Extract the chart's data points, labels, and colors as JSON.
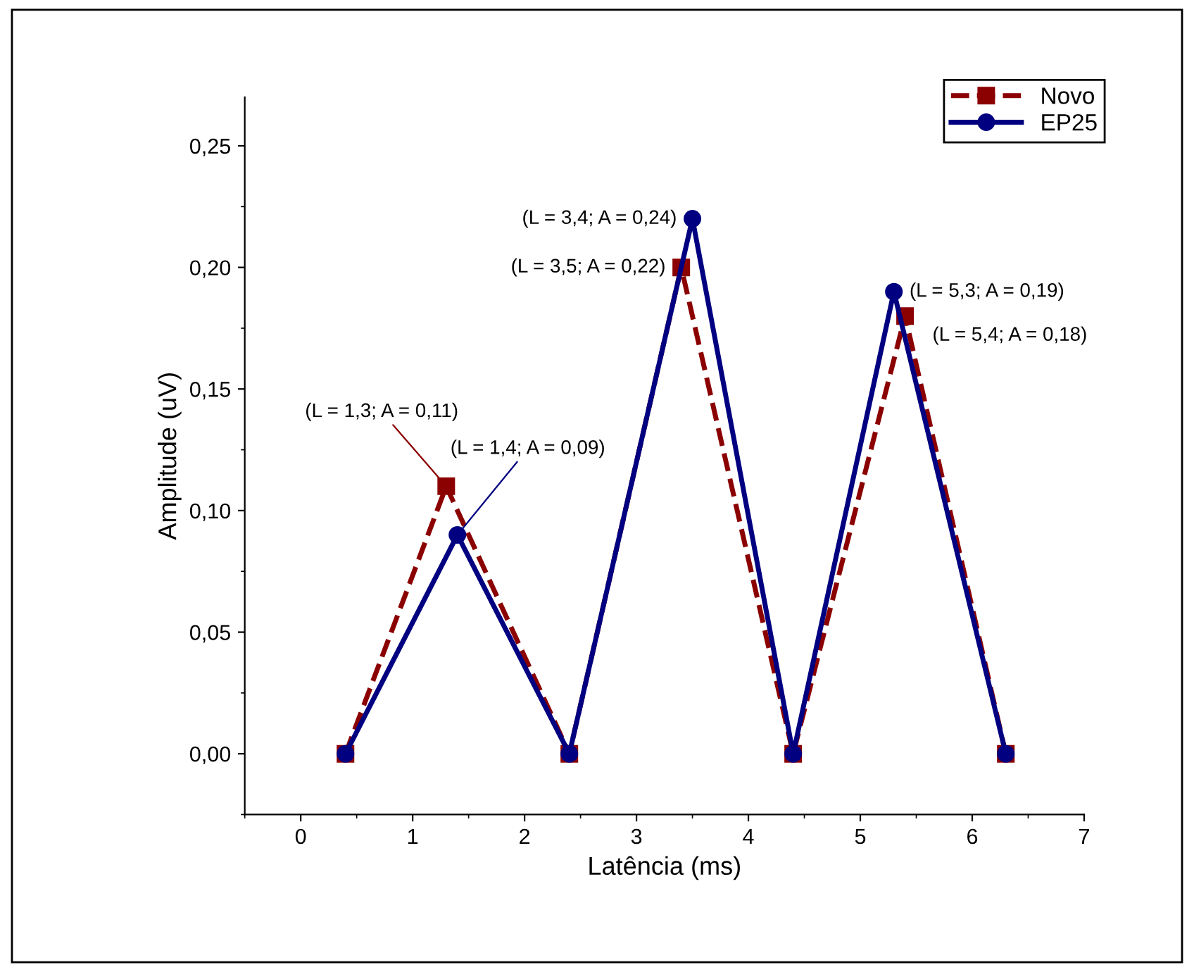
{
  "chart_data": {
    "type": "line",
    "xlabel": "Latência (ms)",
    "ylabel": "Amplitude (uV)",
    "xlim": [
      -0.5,
      7
    ],
    "xticks": [
      0,
      1,
      2,
      3,
      4,
      5,
      6,
      7
    ],
    "ylim": [
      -0.025,
      0.27
    ],
    "yticks": [
      {
        "value": 0,
        "label": "0,00"
      },
      {
        "value": 0.05,
        "label": "0,05"
      },
      {
        "value": 0.1,
        "label": "0,10"
      },
      {
        "value": 0.15,
        "label": "0,15"
      },
      {
        "value": 0.2,
        "label": "0,20"
      },
      {
        "value": 0.25,
        "label": "0,25"
      }
    ],
    "grid": false,
    "legend": "top right",
    "series": [
      {
        "name": "Novo",
        "color": "#8b0000",
        "marker": "square",
        "line_style": "dashed",
        "x": [
          0.4,
          1.3,
          2.4,
          3.4,
          4.4,
          5.4,
          6.3
        ],
        "values": [
          0,
          0.11,
          0,
          0.2,
          0,
          0.18,
          0
        ]
      },
      {
        "name": "EP25",
        "color": "#000080",
        "marker": "circle",
        "line_style": "solid",
        "x": [
          0.4,
          1.4,
          2.4,
          3.5,
          4.4,
          5.3,
          6.3
        ],
        "values": [
          0,
          0.09,
          0,
          0.22,
          0,
          0.19,
          0
        ]
      }
    ],
    "annotations": [
      {
        "text": "(L = 1,3; A = 0,11)",
        "x": 1.3,
        "y": 0.11
      },
      {
        "text": "(L = 1,4; A = 0,09)",
        "x": 1.4,
        "y": 0.09
      },
      {
        "text": "(L = 3,4; A = 0,24)",
        "x": 3.5,
        "y": 0.22
      },
      {
        "text": "(L = 3,5; A = 0,22)",
        "x": 3.4,
        "y": 0.2
      },
      {
        "text": "(L = 5,3; A = 0,19)",
        "x": 5.3,
        "y": 0.19
      },
      {
        "text": "(L = 5,4; A = 0,18)",
        "x": 5.4,
        "y": 0.18
      }
    ]
  }
}
